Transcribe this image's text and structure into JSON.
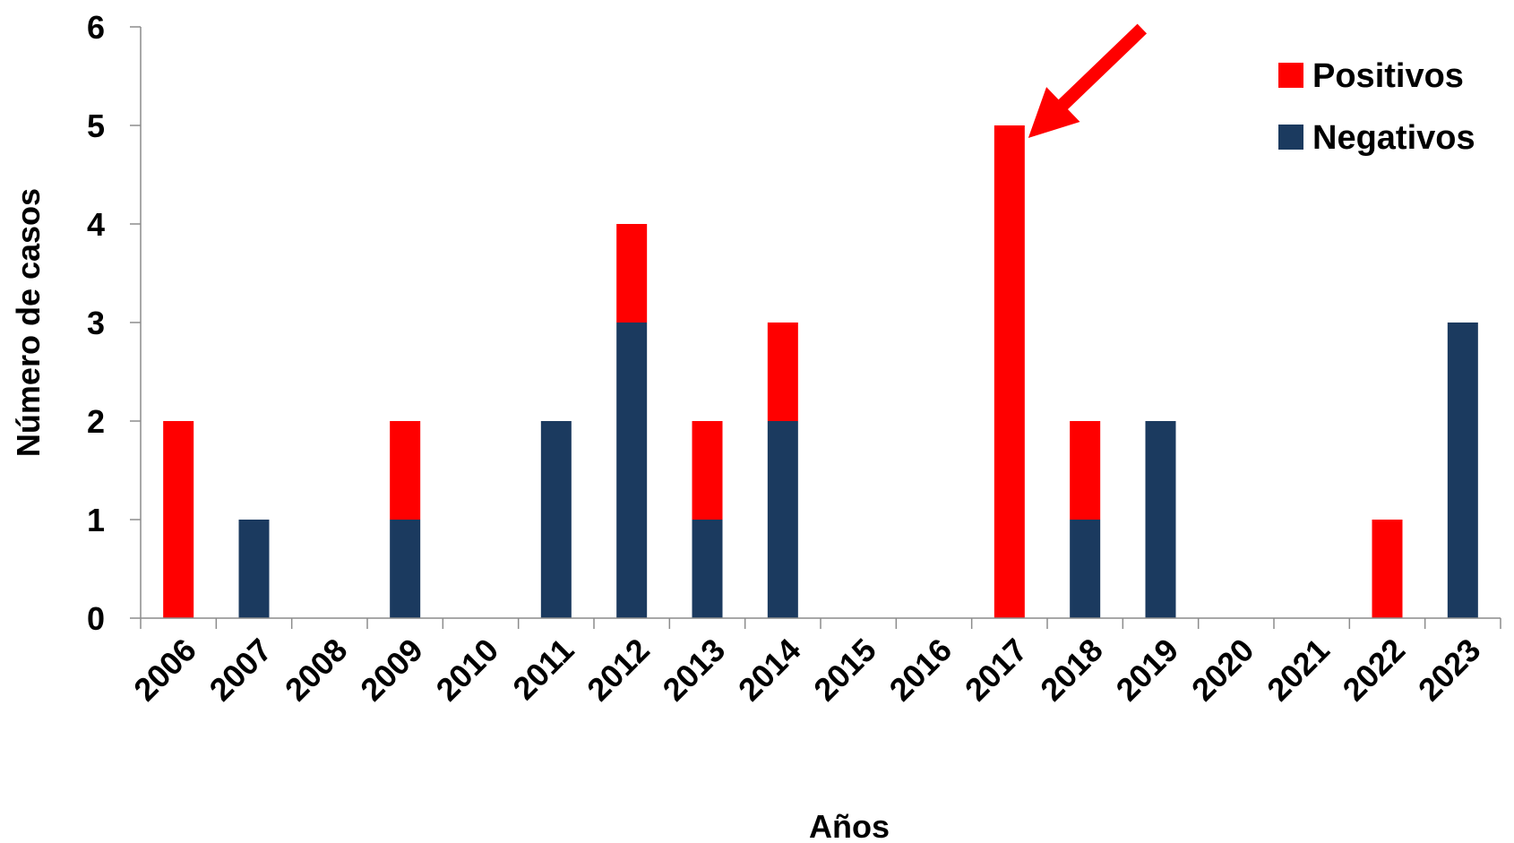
{
  "chart_data": {
    "type": "bar",
    "stacked": true,
    "title": "",
    "xlabel": "Años",
    "ylabel": "Número de casos",
    "categories": [
      "2006",
      "2007",
      "2008",
      "2009",
      "2010",
      "2011",
      "2012",
      "2013",
      "2014",
      "2015",
      "2016",
      "2017",
      "2018",
      "2019",
      "2020",
      "2021",
      "2022",
      "2023"
    ],
    "series": [
      {
        "name": "Negativos",
        "color": "#1b3a5f",
        "values": [
          0,
          1,
          0,
          1,
          0,
          2,
          3,
          1,
          2,
          0,
          0,
          0,
          1,
          2,
          0,
          0,
          0,
          3
        ]
      },
      {
        "name": "Positivos",
        "color": "#ff0000",
        "values": [
          2,
          0,
          0,
          1,
          0,
          0,
          1,
          1,
          1,
          0,
          0,
          5,
          1,
          0,
          0,
          0,
          1,
          0
        ]
      }
    ],
    "ylim": [
      0,
      6
    ],
    "yticks": [
      0,
      1,
      2,
      3,
      4,
      5,
      6
    ],
    "grid": false,
    "legend_position": "top-right",
    "legend_order": [
      "Positivos",
      "Negativos"
    ],
    "annotation": {
      "type": "arrow",
      "color": "#ff0000",
      "points_to": "2017"
    }
  }
}
